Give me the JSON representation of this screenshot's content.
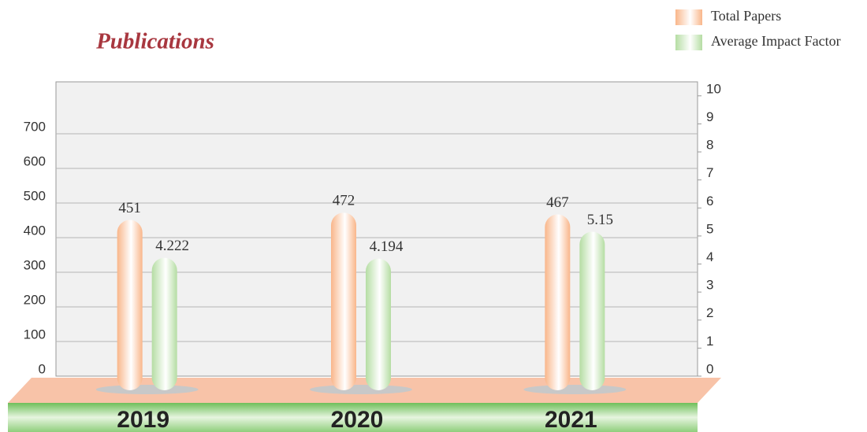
{
  "chart_data": {
    "type": "bar",
    "title": "Publications",
    "categories": [
      "2019",
      "2020",
      "2021"
    ],
    "series": [
      {
        "name": "Total Papers",
        "color": "#f9b68a",
        "values": [
          451,
          472,
          467
        ]
      },
      {
        "name": "Average Impact Factor",
        "color": "#b5dda3",
        "values": [
          4.222,
          4.194,
          5.15
        ],
        "axis": "y2"
      }
    ],
    "ylim": [
      0,
      850
    ],
    "yticks": [
      0,
      100,
      200,
      300,
      400,
      500,
      600,
      700
    ],
    "y2lim": [
      0,
      10.5
    ],
    "y2ticks": [
      0,
      1,
      2,
      3,
      4,
      5,
      6,
      7,
      8,
      9,
      10
    ],
    "grid": true,
    "legend": "top-right"
  }
}
